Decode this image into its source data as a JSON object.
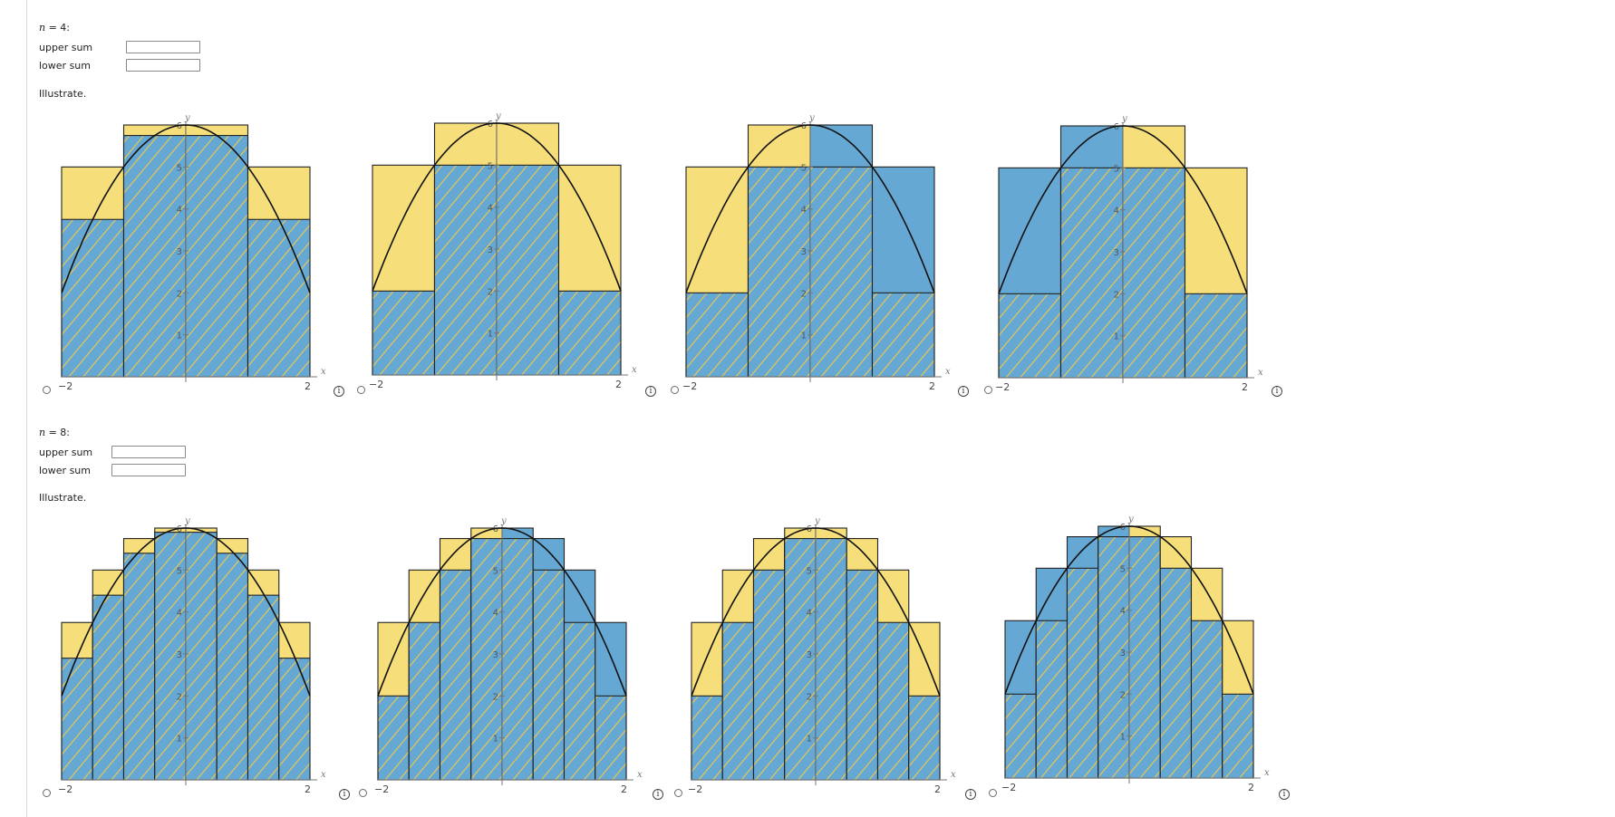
{
  "sections": [
    {
      "n_prefix": "n",
      "n_suffix": " = 4:",
      "upper_label": "upper sum",
      "lower_label": "lower sum",
      "upper_value": "",
      "lower_value": "",
      "illustrate_label": "Illustrate."
    },
    {
      "n_prefix": "n",
      "n_suffix": " = 8:",
      "upper_label": "upper sum",
      "lower_label": "lower sum",
      "upper_value": "",
      "lower_value": "",
      "illustrate_label": "Illustrate."
    }
  ],
  "axis": {
    "x_label": "x",
    "y_label": "y",
    "x_min_label": "−2",
    "x_max_label": "2",
    "y_ticks": [
      "1",
      "2",
      "3",
      "4",
      "5",
      "6"
    ]
  },
  "info_glyph": "i",
  "colors": {
    "yellow": "#f6df7a",
    "blue": "#66a8d4",
    "hatch": "#f0c84a",
    "curve": "#111111",
    "axis": "#777777"
  },
  "chart_data": [
    {
      "type": "bar",
      "n": 4,
      "fill": "lower-hatched-upper-yellow",
      "heights_yellow": [
        5,
        6,
        6,
        5
      ],
      "heights_blue": [
        3.75,
        5.75,
        5.75,
        3.75
      ],
      "ylim": [
        0,
        6
      ],
      "xlim": [
        -2,
        2
      ]
    },
    {
      "type": "bar",
      "n": 4,
      "fill": "lower-hatched-upper-yellow",
      "heights_yellow": [
        5,
        6,
        6,
        5
      ],
      "heights_blue": [
        2,
        5,
        5,
        2
      ],
      "ylim": [
        0,
        6
      ],
      "xlim": [
        -2,
        2
      ]
    },
    {
      "type": "bar",
      "n": 4,
      "fill": "left-yellow-right-blue",
      "heights_yellow": [
        5,
        6,
        5,
        2
      ],
      "heights_blue": [
        2,
        5,
        6,
        5
      ],
      "ylim": [
        0,
        6
      ],
      "xlim": [
        -2,
        2
      ]
    },
    {
      "type": "bar",
      "n": 4,
      "fill": "left-blue-right-yellow",
      "heights_yellow": [
        2,
        5,
        6,
        5
      ],
      "heights_blue": [
        5,
        6,
        5,
        2
      ],
      "ylim": [
        0,
        6
      ],
      "xlim": [
        -2,
        2
      ]
    },
    {
      "type": "bar",
      "n": 8,
      "fill": "lower-hatched-upper-yellow",
      "heights_yellow": [
        3.75,
        5,
        5.75,
        6,
        6,
        5.75,
        5,
        3.75
      ],
      "heights_blue": [
        2.9,
        4.4,
        5.4,
        5.9,
        5.9,
        5.4,
        4.4,
        2.9
      ],
      "ylim": [
        0,
        6
      ],
      "xlim": [
        -2,
        2
      ]
    },
    {
      "type": "bar",
      "n": 8,
      "fill": "left-yellow-right-blue",
      "heights_yellow": [
        3.75,
        5,
        5.75,
        6,
        5.75,
        5,
        3.75,
        2
      ],
      "heights_blue": [
        2,
        3.75,
        5,
        5.75,
        6,
        5.75,
        5,
        3.75
      ],
      "ylim": [
        0,
        6
      ],
      "xlim": [
        -2,
        2
      ]
    },
    {
      "type": "bar",
      "n": 8,
      "fill": "lower-hatched-upper-yellow",
      "heights_yellow": [
        3.75,
        5,
        5.75,
        6,
        6,
        5.75,
        5,
        3.75
      ],
      "heights_blue": [
        2,
        3.75,
        5,
        5.75,
        5.75,
        5,
        3.75,
        2
      ],
      "ylim": [
        0,
        6
      ],
      "xlim": [
        -2,
        2
      ]
    },
    {
      "type": "bar",
      "n": 8,
      "fill": "left-blue-right-yellow",
      "heights_yellow": [
        2,
        3.75,
        5,
        5.75,
        6,
        5.75,
        5,
        3.75
      ],
      "heights_blue": [
        3.75,
        5,
        5.75,
        6,
        5.75,
        5,
        3.75,
        2
      ],
      "ylim": [
        0,
        6
      ],
      "xlim": [
        -2,
        2
      ]
    }
  ]
}
